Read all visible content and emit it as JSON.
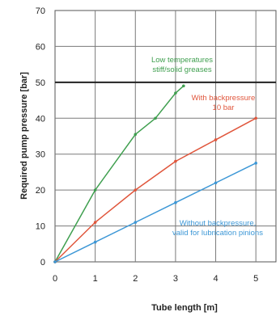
{
  "chart_data": {
    "type": "line",
    "xlabel": "Tube length [m]",
    "ylabel": "Required pump pressure [bar]",
    "xlim": [
      0,
      5.5
    ],
    "ylim": [
      0,
      70
    ],
    "x_ticks": [
      "0",
      "1",
      "2",
      "3",
      "4",
      "5"
    ],
    "y_ticks": [
      "0",
      "10",
      "20",
      "30",
      "40",
      "50",
      "60",
      "70"
    ],
    "grid": true,
    "series": [
      {
        "key": "low_temp",
        "color": "#3f9f4f",
        "x": [
          0,
          1,
          2,
          2.5,
          3,
          3.2
        ],
        "y": [
          0,
          20,
          35.5,
          40,
          47,
          49
        ]
      },
      {
        "key": "backpressure",
        "color": "#e0563c",
        "x": [
          0,
          1,
          2,
          3,
          4,
          5
        ],
        "y": [
          0,
          11,
          20,
          28,
          34,
          40
        ]
      },
      {
        "key": "no_backpressure",
        "color": "#3c97d6",
        "x": [
          0,
          1,
          2,
          3,
          4,
          5
        ],
        "y": [
          0,
          5.5,
          11,
          16.5,
          22,
          27.5
        ]
      }
    ],
    "annotations": [
      {
        "key": "low_temp",
        "color": "#3f9f4f",
        "lines": [
          "Low temperatures",
          "stiff/solid greases"
        ]
      },
      {
        "key": "backpressure",
        "color": "#e0563c",
        "lines": [
          "With backpressure",
          "10 bar"
        ]
      },
      {
        "key": "no_backpressure",
        "color": "#3c97d6",
        "lines": [
          "Without backpressure,",
          "valid for lubrication pinions"
        ]
      }
    ]
  }
}
